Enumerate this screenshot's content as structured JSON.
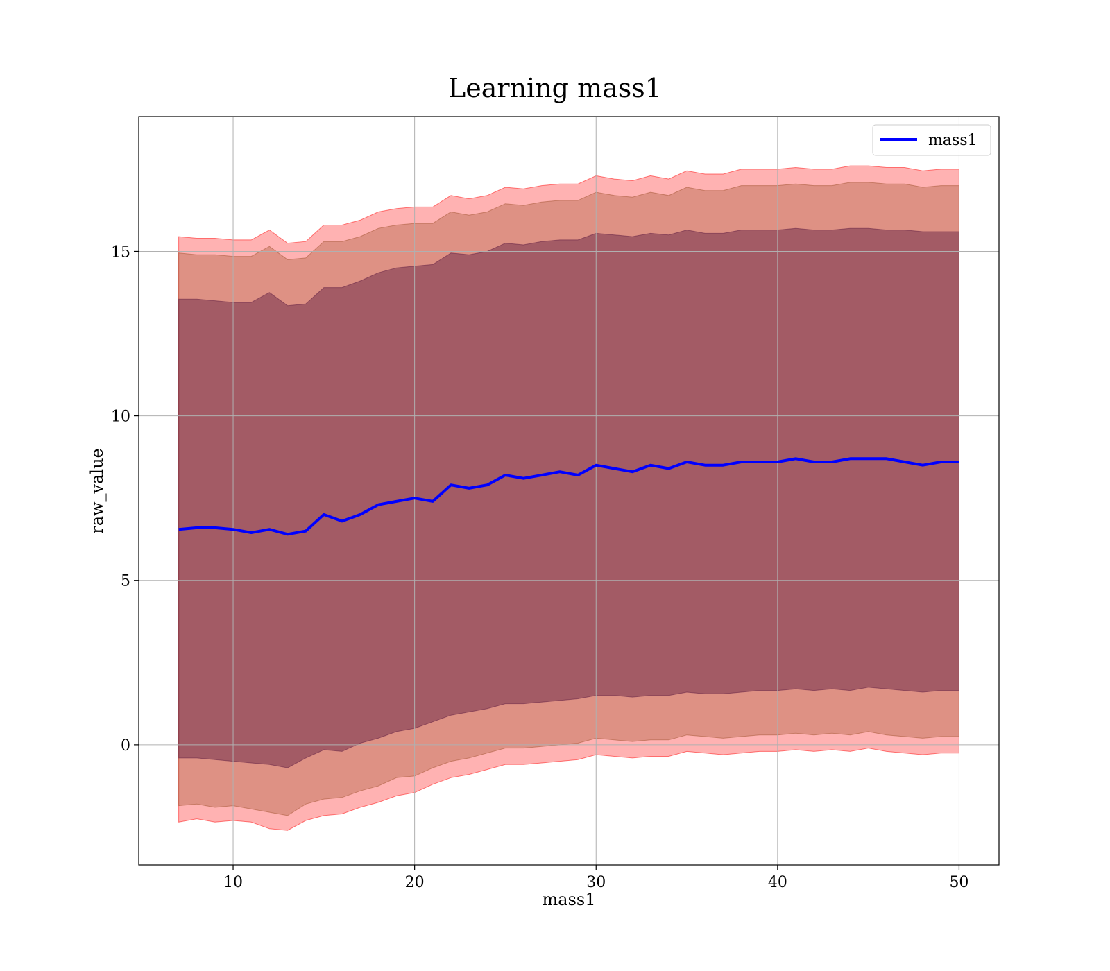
{
  "chart_data": {
    "type": "line",
    "title": "Learning mass1",
    "xlabel": "mass1",
    "ylabel": "raw_value",
    "xlim": [
      4.8,
      52.2
    ],
    "ylim": [
      -3.65,
      19.1
    ],
    "xticks": [
      10,
      20,
      30,
      40,
      50
    ],
    "yticks": [
      0,
      5,
      10,
      15
    ],
    "grid": true,
    "legend": {
      "placement": "top-right",
      "entries": [
        "mass1"
      ]
    },
    "series": [
      {
        "name": "mass1",
        "color": "#0000ff",
        "x": [
          7,
          8,
          9,
          10,
          11,
          12,
          13,
          14,
          15,
          16,
          17,
          18,
          19,
          20,
          21,
          22,
          23,
          24,
          25,
          26,
          27,
          28,
          29,
          30,
          31,
          32,
          33,
          34,
          35,
          36,
          37,
          38,
          39,
          40,
          41,
          42,
          43,
          44,
          45,
          46,
          47,
          48,
          49,
          50
        ],
        "y": [
          6.55,
          6.6,
          6.6,
          6.55,
          6.45,
          6.55,
          6.4,
          6.5,
          7.0,
          6.8,
          7.0,
          7.3,
          7.4,
          7.5,
          7.4,
          7.9,
          7.8,
          7.9,
          8.2,
          8.1,
          8.2,
          8.3,
          8.2,
          8.5,
          8.4,
          8.3,
          8.5,
          8.4,
          8.6,
          8.5,
          8.5,
          8.6,
          8.6,
          8.6,
          8.7,
          8.6,
          8.6,
          8.7,
          8.7,
          8.7,
          8.6,
          8.5,
          8.6,
          8.6
        ]
      }
    ],
    "bands": [
      {
        "color": "#ff0000",
        "opacity": 0.3,
        "lower": [
          -2.35,
          -2.25,
          -2.35,
          -2.3,
          -2.35,
          -2.55,
          -2.6,
          -2.3,
          -2.15,
          -2.1,
          -1.9,
          -1.75,
          -1.55,
          -1.45,
          -1.2,
          -1.0,
          -0.9,
          -0.75,
          -0.6,
          -0.6,
          -0.55,
          -0.5,
          -0.45,
          -0.3,
          -0.35,
          -0.4,
          -0.35,
          -0.35,
          -0.2,
          -0.25,
          -0.3,
          -0.25,
          -0.2,
          -0.2,
          -0.15,
          -0.2,
          -0.15,
          -0.2,
          -0.1,
          -0.2,
          -0.25,
          -0.3,
          -0.25,
          -0.25
        ],
        "upper": [
          15.45,
          15.4,
          15.4,
          15.35,
          15.35,
          15.65,
          15.25,
          15.3,
          15.8,
          15.8,
          15.95,
          16.2,
          16.3,
          16.35,
          16.35,
          16.7,
          16.6,
          16.7,
          16.95,
          16.9,
          17.0,
          17.05,
          17.05,
          17.3,
          17.2,
          17.15,
          17.3,
          17.2,
          17.45,
          17.35,
          17.35,
          17.5,
          17.5,
          17.5,
          17.55,
          17.5,
          17.5,
          17.6,
          17.6,
          17.55,
          17.55,
          17.45,
          17.5,
          17.5
        ]
      },
      {
        "color": "#a0522d",
        "opacity": 0.35,
        "lower": [
          -1.85,
          -1.8,
          -1.9,
          -1.85,
          -1.95,
          -2.05,
          -2.15,
          -1.8,
          -1.65,
          -1.6,
          -1.4,
          -1.25,
          -1.0,
          -0.95,
          -0.7,
          -0.5,
          -0.4,
          -0.25,
          -0.1,
          -0.1,
          -0.05,
          0.0,
          0.05,
          0.2,
          0.15,
          0.1,
          0.15,
          0.15,
          0.3,
          0.25,
          0.2,
          0.25,
          0.3,
          0.3,
          0.35,
          0.3,
          0.35,
          0.3,
          0.4,
          0.3,
          0.25,
          0.2,
          0.25,
          0.25
        ],
        "upper": [
          14.95,
          14.9,
          14.9,
          14.85,
          14.85,
          15.15,
          14.75,
          14.8,
          15.3,
          15.3,
          15.45,
          15.7,
          15.8,
          15.85,
          15.85,
          16.2,
          16.1,
          16.2,
          16.45,
          16.4,
          16.5,
          16.55,
          16.55,
          16.8,
          16.7,
          16.65,
          16.8,
          16.7,
          16.95,
          16.85,
          16.85,
          17.0,
          17.0,
          17.0,
          17.05,
          17.0,
          17.0,
          17.1,
          17.1,
          17.05,
          17.05,
          16.95,
          17.0,
          17.0
        ]
      },
      {
        "color": "#5b1a40",
        "opacity": 0.45,
        "lower": [
          -0.4,
          -0.4,
          -0.45,
          -0.5,
          -0.55,
          -0.6,
          -0.7,
          -0.4,
          -0.15,
          -0.2,
          0.05,
          0.2,
          0.4,
          0.5,
          0.7,
          0.9,
          1.0,
          1.1,
          1.25,
          1.25,
          1.3,
          1.35,
          1.4,
          1.5,
          1.5,
          1.45,
          1.5,
          1.5,
          1.6,
          1.55,
          1.55,
          1.6,
          1.65,
          1.65,
          1.7,
          1.65,
          1.7,
          1.65,
          1.75,
          1.7,
          1.65,
          1.6,
          1.65,
          1.65
        ],
        "upper": [
          13.55,
          13.55,
          13.5,
          13.45,
          13.45,
          13.75,
          13.35,
          13.4,
          13.9,
          13.9,
          14.1,
          14.35,
          14.5,
          14.55,
          14.6,
          14.95,
          14.9,
          15.0,
          15.25,
          15.2,
          15.3,
          15.35,
          15.35,
          15.55,
          15.5,
          15.45,
          15.55,
          15.5,
          15.65,
          15.55,
          15.55,
          15.65,
          15.65,
          15.65,
          15.7,
          15.65,
          15.65,
          15.7,
          15.7,
          15.65,
          15.65,
          15.6,
          15.6,
          15.6
        ]
      }
    ]
  }
}
